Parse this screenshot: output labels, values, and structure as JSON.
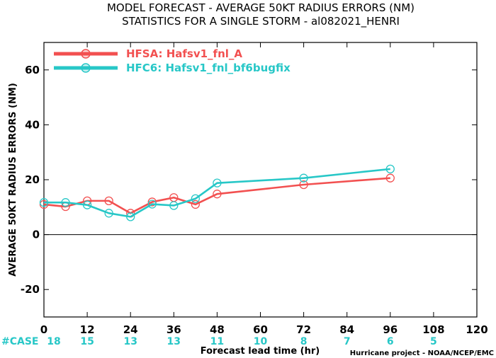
{
  "chart_data": {
    "type": "line",
    "title": "MODEL FORECAST - AVERAGE 50KT RADIUS ERRORS (NM)",
    "subtitle": "STATISTICS FOR A SINGLE STORM - al082021_HENRI",
    "xlabel": "Forecast lead time (hr)",
    "ylabel": "AVERAGE 50KT RADIUS ERRORS (NM)",
    "xlim": [
      0,
      120
    ],
    "ylim": [
      -30,
      70
    ],
    "x_ticks": [
      "0",
      "12",
      "24",
      "36",
      "48",
      "60",
      "72",
      "84",
      "96",
      "108",
      "120"
    ],
    "y_ticks": [
      "-20",
      "0",
      "20",
      "40",
      "60"
    ],
    "case_label": "#CASE",
    "cases": [
      {
        "x": 0,
        "n": "18"
      },
      {
        "x": 12,
        "n": "15"
      },
      {
        "x": 24,
        "n": "13"
      },
      {
        "x": 36,
        "n": "13"
      },
      {
        "x": 48,
        "n": "11"
      },
      {
        "x": 60,
        "n": "10"
      },
      {
        "x": 72,
        "n": "8"
      },
      {
        "x": 84,
        "n": "7"
      },
      {
        "x": 96,
        "n": "6"
      },
      {
        "x": 108,
        "n": "5"
      }
    ],
    "series": [
      {
        "name": "HFSA: Hafsv1_fnl_A",
        "color": "#f25050",
        "x": [
          0,
          6,
          12,
          18,
          24,
          30,
          36,
          42,
          48,
          72,
          96
        ],
        "y": [
          11,
          10.2,
          12.3,
          12.3,
          7.8,
          11.9,
          13.5,
          11,
          14.8,
          18.2,
          20.6
        ]
      },
      {
        "name": "HFC6: Hafsv1_fnl_bf6bugfix",
        "color": "#27c7c7",
        "x": [
          0,
          6,
          12,
          18,
          24,
          30,
          36,
          42,
          48,
          72,
          96
        ],
        "y": [
          11.7,
          11.7,
          10.8,
          7.8,
          6.5,
          11.1,
          10.6,
          13.1,
          18.8,
          20.6,
          23.9
        ]
      }
    ],
    "legend_position": "top-left",
    "grid": false
  },
  "credit": "Hurricane project - NOAA/NCEP/EMC"
}
